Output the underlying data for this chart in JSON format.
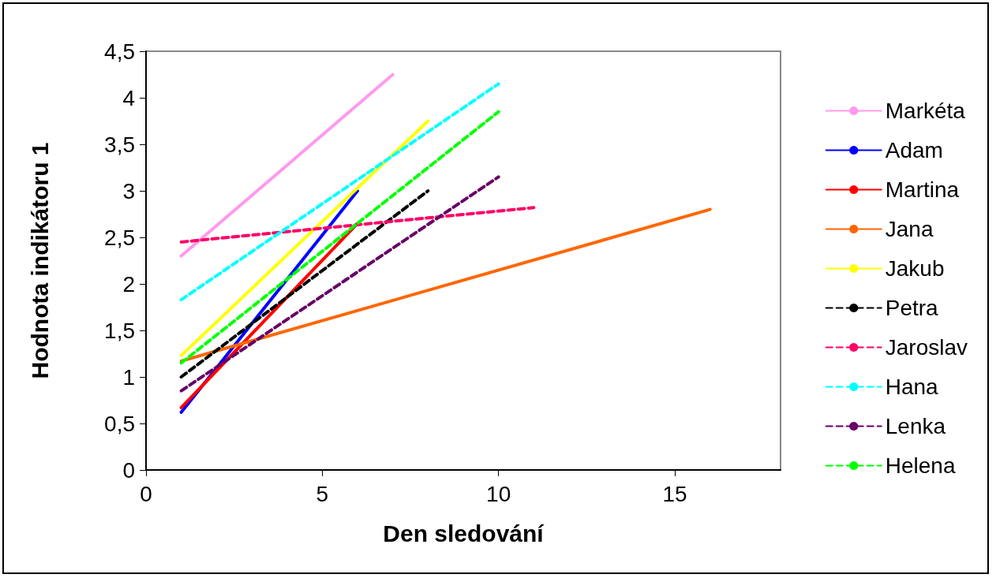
{
  "chart_data": {
    "type": "line",
    "xlabel": "Den sledování",
    "ylabel": "Hodnota indikátoru 1",
    "xlim": [
      0,
      18
    ],
    "xticks": [
      0,
      5,
      10,
      15
    ],
    "ylim": [
      0,
      4.5
    ],
    "yticks": [
      0,
      {
        "value": 0.5,
        "label": "0,5"
      },
      1,
      {
        "value": 1.5,
        "label": "1,5"
      },
      2,
      {
        "value": 2.5,
        "label": "2,5"
      },
      3,
      {
        "value": 3.5,
        "label": "3,5"
      },
      4,
      {
        "value": 4.5,
        "label": "4,5"
      }
    ],
    "grid": false,
    "legend": "right",
    "marker": "none",
    "series": [
      {
        "name": "Markéta",
        "color": "#ff99ee",
        "line_style": "solid",
        "x": [
          1,
          7
        ],
        "values": [
          2.3,
          4.25
        ]
      },
      {
        "name": "Adam",
        "color": "#0000ff",
        "line_style": "solid",
        "x": [
          1,
          6
        ],
        "values": [
          0.62,
          3.0
        ]
      },
      {
        "name": "Martina",
        "color": "#ff0000",
        "line_style": "solid",
        "x": [
          1,
          6
        ],
        "values": [
          0.67,
          2.65
        ]
      },
      {
        "name": "Jana",
        "color": "#ff6600",
        "line_style": "solid",
        "x": [
          1,
          16
        ],
        "values": [
          1.17,
          2.8
        ]
      },
      {
        "name": "Jakub",
        "color": "#ffff00",
        "line_style": "solid",
        "x": [
          1,
          8
        ],
        "values": [
          1.23,
          3.75
        ]
      },
      {
        "name": "Petra",
        "color": "#000000",
        "line_style": "dashed",
        "x": [
          1,
          8
        ],
        "values": [
          1.0,
          3.0
        ]
      },
      {
        "name": "Jaroslav",
        "color": "#ff0066",
        "line_style": "dashed",
        "x": [
          1,
          11
        ],
        "values": [
          2.45,
          2.82
        ]
      },
      {
        "name": "Hana",
        "color": "#00ffff",
        "line_style": "dashed",
        "x": [
          1,
          10
        ],
        "values": [
          1.83,
          4.15
        ]
      },
      {
        "name": "Lenka",
        "color": "#660066",
        "line_style": "dashed",
        "x": [
          1,
          10
        ],
        "values": [
          0.85,
          3.15
        ]
      },
      {
        "name": "Helena",
        "color": "#00ff00",
        "line_style": "dashed",
        "x": [
          1,
          10
        ],
        "values": [
          1.15,
          3.85
        ]
      }
    ]
  }
}
